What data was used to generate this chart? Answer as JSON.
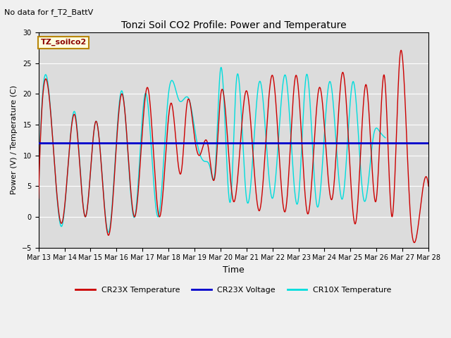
{
  "title": "Tonzi Soil CO2 Profile: Power and Temperature",
  "subtitle": "No data for f_T2_BattV",
  "ylabel": "Power (V) / Temperature (C)",
  "xlabel": "Time",
  "ylim": [
    -5,
    30
  ],
  "yticks": [
    -5,
    0,
    5,
    10,
    15,
    20,
    25,
    30
  ],
  "voltage_value": 12.0,
  "legend_label": "TZ_soilco2",
  "line_colors": {
    "cr23x_temp": "#cc0000",
    "cr23x_voltage": "#0000cc",
    "cr10x_temp": "#00dddd"
  },
  "legend_entries": [
    "CR23X Temperature",
    "CR23X Voltage",
    "CR10X Temperature"
  ],
  "xtick_labels": [
    "Mar 13",
    "Mar 14",
    "Mar 15",
    "Mar 16",
    "Mar 17",
    "Mar 18",
    "Mar 19",
    "Mar 20",
    "Mar 21",
    "Mar 22",
    "Mar 23",
    "Mar 24",
    "Mar 25",
    "Mar 26",
    "Mar 27",
    "Mar 28"
  ],
  "bg_color": "#dcdcdc",
  "fig_bg": "#f0f0f0"
}
